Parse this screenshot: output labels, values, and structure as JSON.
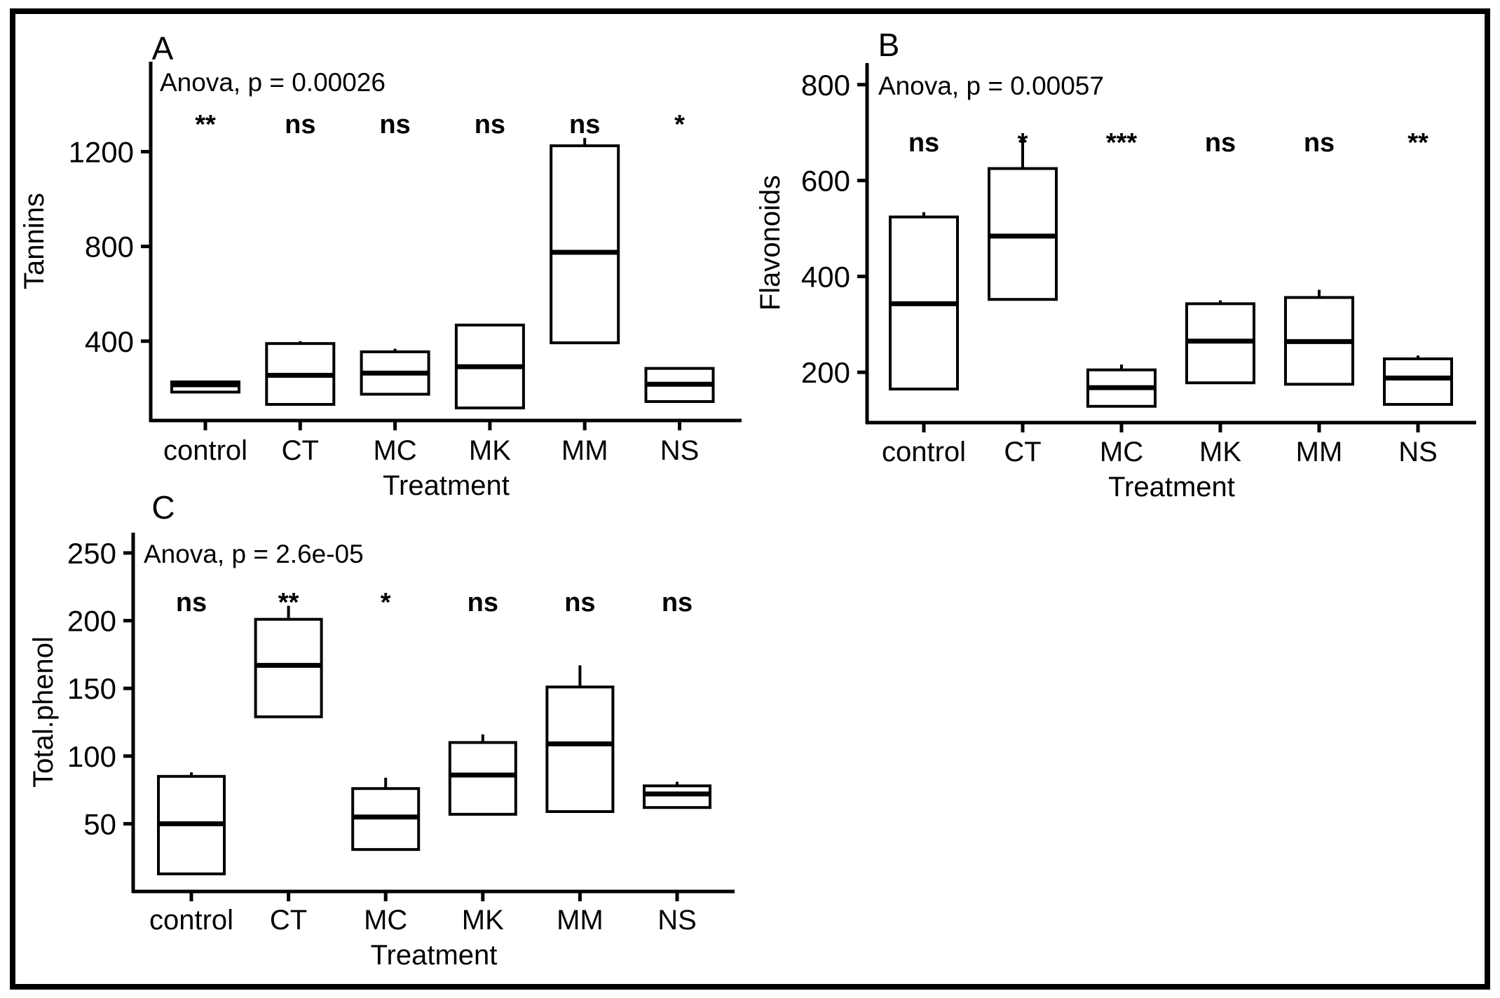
{
  "figure": {
    "background": "#ffffff",
    "border_color": "#000000",
    "text_color": "#000000",
    "line_color": "#000000"
  },
  "chart_data": [
    {
      "type": "boxplot",
      "panel_label": "A",
      "annotation": "Anova, p = 0.00026",
      "ylabel": "Tannins",
      "xlabel": "Treatment",
      "ylim": [
        65,
        1580
      ],
      "yticks": [
        400,
        800,
        1200
      ],
      "gridlines": false,
      "legend": null,
      "categories": [
        "control",
        "CT",
        "MC",
        "MK",
        "MM",
        "NS"
      ],
      "significance": [
        "**",
        "ns",
        "ns",
        "ns",
        "ns",
        "*"
      ],
      "boxes": [
        {
          "category": "control",
          "q1": 185,
          "median": 216,
          "q3": 228,
          "whisker_low": null,
          "whisker_high": null
        },
        {
          "category": "CT",
          "q1": 133,
          "median": 256,
          "q3": 390,
          "whisker_low": null,
          "whisker_high": 400
        },
        {
          "category": "MC",
          "q1": 176,
          "median": 265,
          "q3": 355,
          "whisker_low": null,
          "whisker_high": 368
        },
        {
          "category": "MK",
          "q1": 118,
          "median": 292,
          "q3": 468,
          "whisker_low": null,
          "whisker_high": null
        },
        {
          "category": "MM",
          "q1": 393,
          "median": 775,
          "q3": 1225,
          "whisker_low": null,
          "whisker_high": 1258
        },
        {
          "category": "NS",
          "q1": 145,
          "median": 218,
          "q3": 285,
          "whisker_low": null,
          "whisker_high": null
        }
      ]
    },
    {
      "type": "boxplot",
      "panel_label": "B",
      "annotation": "Anova, p = 0.00057",
      "ylabel": "Flavonoids",
      "xlabel": "Treatment",
      "ylim": [
        95,
        845
      ],
      "yticks": [
        200,
        400,
        600,
        800
      ],
      "gridlines": false,
      "legend": null,
      "categories": [
        "control",
        "CT",
        "MC",
        "MK",
        "MM",
        "NS"
      ],
      "significance": [
        "ns",
        "*",
        "***",
        "ns",
        "ns",
        "**"
      ],
      "boxes": [
        {
          "category": "control",
          "q1": 165,
          "median": 343,
          "q3": 524,
          "whisker_low": null,
          "whisker_high": 534
        },
        {
          "category": "CT",
          "q1": 352,
          "median": 484,
          "q3": 625,
          "whisker_low": null,
          "whisker_high": 690
        },
        {
          "category": "MC",
          "q1": 129,
          "median": 168,
          "q3": 205,
          "whisker_low": null,
          "whisker_high": 216
        },
        {
          "category": "MK",
          "q1": 178,
          "median": 265,
          "q3": 343,
          "whisker_low": null,
          "whisker_high": 350
        },
        {
          "category": "MM",
          "q1": 175,
          "median": 264,
          "q3": 356,
          "whisker_low": null,
          "whisker_high": 372
        },
        {
          "category": "NS",
          "q1": 133,
          "median": 188,
          "q3": 228,
          "whisker_low": null,
          "whisker_high": 235
        }
      ]
    },
    {
      "type": "boxplot",
      "panel_label": "C",
      "annotation": "Anova, p = 2.6e-05",
      "ylabel": "Total.phenol",
      "xlabel": "Treatment",
      "ylim": [
        0,
        265
      ],
      "yticks": [
        50,
        100,
        150,
        200,
        250
      ],
      "gridlines": false,
      "legend": null,
      "categories": [
        "control",
        "CT",
        "MC",
        "MK",
        "MM",
        "NS"
      ],
      "significance": [
        "ns",
        "**",
        "*",
        "ns",
        "ns",
        "ns"
      ],
      "boxes": [
        {
          "category": "control",
          "q1": 13,
          "median": 50,
          "q3": 85,
          "whisker_low": null,
          "whisker_high": 88
        },
        {
          "category": "CT",
          "q1": 129,
          "median": 167,
          "q3": 201,
          "whisker_low": null,
          "whisker_high": 211
        },
        {
          "category": "MC",
          "q1": 31,
          "median": 55,
          "q3": 76,
          "whisker_low": null,
          "whisker_high": 84
        },
        {
          "category": "MK",
          "q1": 57,
          "median": 86,
          "q3": 110,
          "whisker_low": null,
          "whisker_high": 116
        },
        {
          "category": "MM",
          "q1": 59,
          "median": 109,
          "q3": 151,
          "whisker_low": null,
          "whisker_high": 167
        },
        {
          "category": "NS",
          "q1": 62,
          "median": 72,
          "q3": 78,
          "whisker_low": null,
          "whisker_high": 81
        }
      ]
    }
  ]
}
